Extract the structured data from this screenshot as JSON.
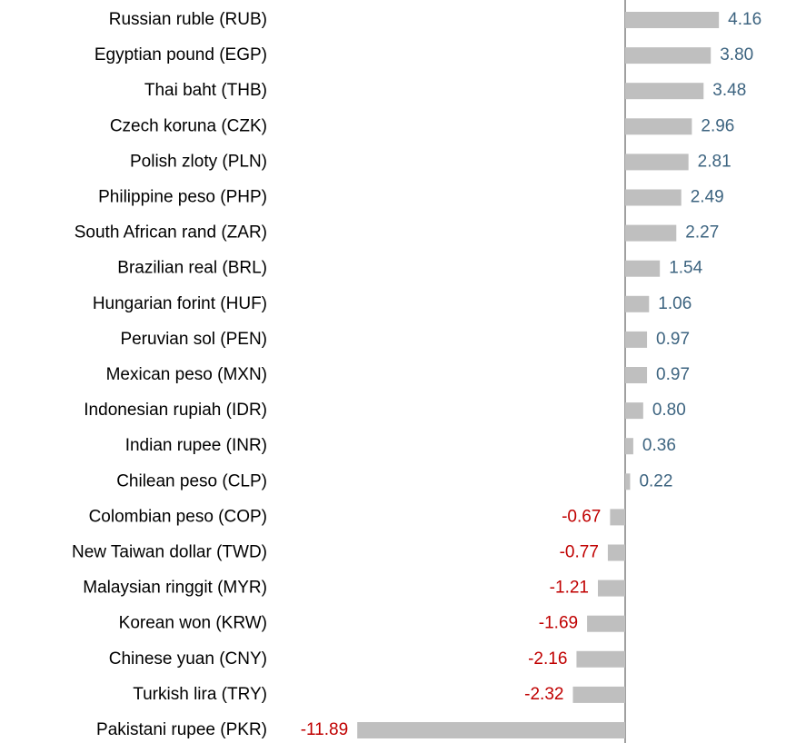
{
  "chart_data": {
    "type": "barh",
    "categories": [
      "Russian ruble (RUB)",
      "Egyptian pound (EGP)",
      "Thai baht (THB)",
      "Czech koruna (CZK)",
      "Polish zloty (PLN)",
      "Philippine peso (PHP)",
      "South African rand (ZAR)",
      "Brazilian real (BRL)",
      "Hungarian forint (HUF)",
      "Peruvian sol (PEN)",
      "Mexican peso (MXN)",
      "Indonesian rupiah (IDR)",
      "Indian rupee (INR)",
      "Chilean peso (CLP)",
      "Colombian peso (COP)",
      "New Taiwan dollar (TWD)",
      "Malaysian ringgit (MYR)",
      "Korean won (KRW)",
      "Chinese yuan (CNY)",
      "Turkish lira (TRY)",
      "Pakistani rupee (PKR)"
    ],
    "values": [
      4.16,
      3.8,
      3.48,
      2.96,
      2.81,
      2.49,
      2.27,
      1.54,
      1.06,
      0.97,
      0.97,
      0.8,
      0.36,
      0.22,
      -0.67,
      -0.77,
      -1.21,
      -1.69,
      -2.16,
      -2.32,
      -11.89
    ],
    "value_labels": [
      "4.16",
      "3.80",
      "3.48",
      "2.96",
      "2.81",
      "2.49",
      "2.27",
      "1.54",
      "1.06",
      "0.97",
      "0.97",
      "0.80",
      "0.36",
      "0.22",
      "-0.67",
      "-0.77",
      "-1.21",
      "-1.69",
      "-2.16",
      "-2.32",
      "-11.89"
    ],
    "color": "#bfbfbf",
    "positive_label_color": "#3d6480",
    "negative_label_color": "#c00000"
  }
}
